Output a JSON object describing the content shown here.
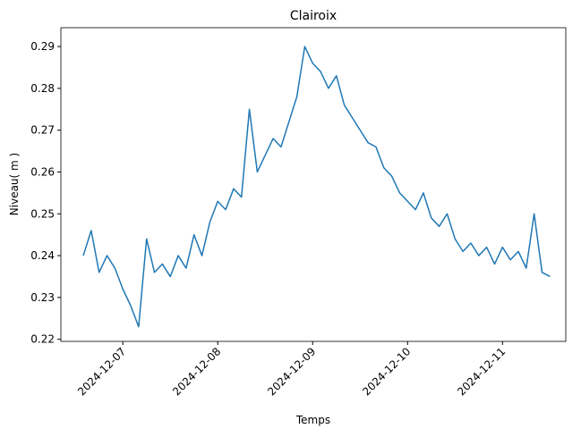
{
  "chart_data": {
    "type": "line",
    "title": "Clairoix",
    "xlabel": "Temps",
    "ylabel": "Niveau( m )",
    "x": [
      "2024-12-06T14:00",
      "2024-12-06T16:00",
      "2024-12-06T18:00",
      "2024-12-06T20:00",
      "2024-12-06T22:00",
      "2024-12-07T00:00",
      "2024-12-07T02:00",
      "2024-12-07T04:00",
      "2024-12-07T06:00",
      "2024-12-07T08:00",
      "2024-12-07T10:00",
      "2024-12-07T12:00",
      "2024-12-07T14:00",
      "2024-12-07T16:00",
      "2024-12-07T18:00",
      "2024-12-07T20:00",
      "2024-12-07T22:00",
      "2024-12-08T00:00",
      "2024-12-08T02:00",
      "2024-12-08T04:00",
      "2024-12-08T06:00",
      "2024-12-08T08:00",
      "2024-12-08T10:00",
      "2024-12-08T12:00",
      "2024-12-08T14:00",
      "2024-12-08T16:00",
      "2024-12-08T18:00",
      "2024-12-08T20:00",
      "2024-12-08T22:00",
      "2024-12-09T00:00",
      "2024-12-09T02:00",
      "2024-12-09T04:00",
      "2024-12-09T06:00",
      "2024-12-09T08:00",
      "2024-12-09T10:00",
      "2024-12-09T12:00",
      "2024-12-09T14:00",
      "2024-12-09T16:00",
      "2024-12-09T18:00",
      "2024-12-09T20:00",
      "2024-12-09T22:00",
      "2024-12-10T00:00",
      "2024-12-10T02:00",
      "2024-12-10T04:00",
      "2024-12-10T06:00",
      "2024-12-10T08:00",
      "2024-12-10T10:00",
      "2024-12-10T12:00",
      "2024-12-10T14:00",
      "2024-12-10T16:00",
      "2024-12-10T18:00",
      "2024-12-10T20:00",
      "2024-12-10T22:00",
      "2024-12-11T00:00",
      "2024-12-11T02:00",
      "2024-12-11T04:00",
      "2024-12-11T06:00",
      "2024-12-11T08:00",
      "2024-12-11T10:00",
      "2024-12-11T12:00"
    ],
    "series": [
      {
        "name": "Niveau",
        "color": "#1f77b4",
        "values": [
          0.24,
          0.246,
          0.236,
          0.24,
          0.237,
          0.232,
          0.228,
          0.223,
          0.244,
          0.236,
          0.238,
          0.235,
          0.24,
          0.237,
          0.245,
          0.24,
          0.248,
          0.253,
          0.251,
          0.256,
          0.254,
          0.275,
          0.26,
          0.264,
          0.268,
          0.266,
          0.272,
          0.278,
          0.29,
          0.286,
          0.284,
          0.28,
          0.283,
          0.276,
          0.273,
          0.27,
          0.267,
          0.266,
          0.261,
          0.259,
          0.255,
          0.253,
          0.251,
          0.255,
          0.249,
          0.247,
          0.25,
          0.244,
          0.241,
          0.243,
          0.24,
          0.242,
          0.238,
          0.242,
          0.239,
          0.241,
          0.237,
          0.25,
          0.236,
          0.235
        ]
      }
    ],
    "xlim": [
      "2024-12-06T08:20",
      "2024-12-11T16:00"
    ],
    "xticks": [
      "2024-12-07",
      "2024-12-08",
      "2024-12-09",
      "2024-12-10",
      "2024-12-11"
    ],
    "ylim": [
      0.2195,
      0.2945
    ],
    "yticks": [
      0.22,
      0.23,
      0.24,
      0.25,
      0.26,
      0.27,
      0.28,
      0.29
    ],
    "grid": false
  }
}
